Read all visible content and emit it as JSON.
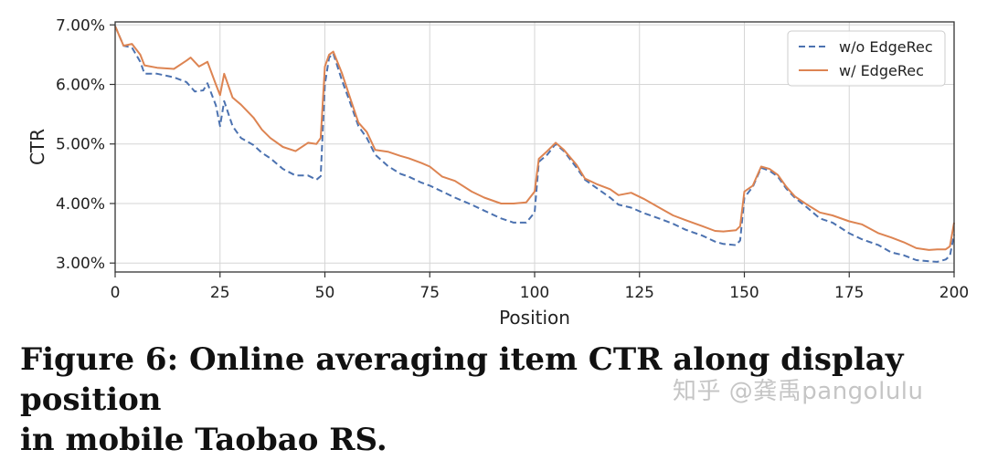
{
  "chart_data": {
    "type": "line",
    "title": "",
    "xlabel": "Position",
    "ylabel": "CTR",
    "xlim": [
      0,
      200
    ],
    "ylim": [
      0.0285,
      0.0705
    ],
    "x_ticks": [
      0,
      25,
      50,
      75,
      100,
      125,
      150,
      175,
      200
    ],
    "x_tick_labels": [
      "0",
      "25",
      "50",
      "75",
      "100",
      "125",
      "150",
      "175",
      "200"
    ],
    "y_ticks": [
      0.03,
      0.04,
      0.05,
      0.06,
      0.07
    ],
    "y_tick_labels": [
      "3.00%",
      "4.00%",
      "5.00%",
      "6.00%",
      "7.00%"
    ],
    "grid": true,
    "legend_position": "top-right",
    "series": [
      {
        "name": "w/o EdgeRec",
        "color": "#4c72b0",
        "style": "dashed",
        "points": [
          [
            0,
            0.0698
          ],
          [
            2,
            0.0665
          ],
          [
            4,
            0.0662
          ],
          [
            6,
            0.0638
          ],
          [
            7,
            0.0618
          ],
          [
            10,
            0.0618
          ],
          [
            14,
            0.0612
          ],
          [
            17,
            0.0604
          ],
          [
            19,
            0.0588
          ],
          [
            21,
            0.059
          ],
          [
            22,
            0.0602
          ],
          [
            24,
            0.0565
          ],
          [
            25,
            0.053
          ],
          [
            26,
            0.0572
          ],
          [
            28,
            0.053
          ],
          [
            30,
            0.051
          ],
          [
            33,
            0.0498
          ],
          [
            35,
            0.0485
          ],
          [
            37,
            0.0476
          ],
          [
            40,
            0.0458
          ],
          [
            43,
            0.0447
          ],
          [
            46,
            0.0447
          ],
          [
            48,
            0.044
          ],
          [
            49,
            0.0446
          ],
          [
            50,
            0.06
          ],
          [
            51,
            0.0645
          ],
          [
            52,
            0.0652
          ],
          [
            54,
            0.0608
          ],
          [
            56,
            0.057
          ],
          [
            58,
            0.053
          ],
          [
            60,
            0.051
          ],
          [
            62,
            0.0482
          ],
          [
            65,
            0.0463
          ],
          [
            68,
            0.045
          ],
          [
            70,
            0.0445
          ],
          [
            73,
            0.0435
          ],
          [
            75,
            0.043
          ],
          [
            78,
            0.042
          ],
          [
            81,
            0.041
          ],
          [
            85,
            0.0398
          ],
          [
            88,
            0.0388
          ],
          [
            92,
            0.0375
          ],
          [
            95,
            0.0368
          ],
          [
            98,
            0.0368
          ],
          [
            100,
            0.0385
          ],
          [
            101,
            0.047
          ],
          [
            103,
            0.0482
          ],
          [
            105,
            0.05
          ],
          [
            107,
            0.0488
          ],
          [
            110,
            0.046
          ],
          [
            112,
            0.044
          ],
          [
            115,
            0.0425
          ],
          [
            118,
            0.041
          ],
          [
            120,
            0.0398
          ],
          [
            123,
            0.0393
          ],
          [
            126,
            0.0384
          ],
          [
            130,
            0.0374
          ],
          [
            133,
            0.0366
          ],
          [
            136,
            0.0356
          ],
          [
            140,
            0.0346
          ],
          [
            143,
            0.0336
          ],
          [
            145,
            0.0332
          ],
          [
            148,
            0.033
          ],
          [
            149,
            0.0338
          ],
          [
            150,
            0.041
          ],
          [
            152,
            0.0428
          ],
          [
            154,
            0.046
          ],
          [
            156,
            0.0455
          ],
          [
            158,
            0.0445
          ],
          [
            160,
            0.0425
          ],
          [
            162,
            0.041
          ],
          [
            165,
            0.0393
          ],
          [
            168,
            0.0375
          ],
          [
            171,
            0.0368
          ],
          [
            175,
            0.035
          ],
          [
            178,
            0.034
          ],
          [
            182,
            0.033
          ],
          [
            185,
            0.0318
          ],
          [
            188,
            0.0313
          ],
          [
            191,
            0.0305
          ],
          [
            194,
            0.0303
          ],
          [
            196,
            0.0302
          ],
          [
            198,
            0.0306
          ],
          [
            199,
            0.0312
          ],
          [
            200,
            0.0348
          ]
        ]
      },
      {
        "name": "w/ EdgeRec",
        "color": "#dd8452",
        "style": "solid",
        "points": [
          [
            0,
            0.0698
          ],
          [
            2,
            0.0665
          ],
          [
            4,
            0.0668
          ],
          [
            6,
            0.065
          ],
          [
            7,
            0.0632
          ],
          [
            10,
            0.0628
          ],
          [
            14,
            0.0626
          ],
          [
            17,
            0.064
          ],
          [
            18,
            0.0645
          ],
          [
            20,
            0.063
          ],
          [
            22,
            0.0638
          ],
          [
            24,
            0.06
          ],
          [
            25,
            0.0582
          ],
          [
            26,
            0.0618
          ],
          [
            28,
            0.0578
          ],
          [
            30,
            0.0566
          ],
          [
            33,
            0.0544
          ],
          [
            35,
            0.0524
          ],
          [
            37,
            0.051
          ],
          [
            40,
            0.0495
          ],
          [
            43,
            0.0488
          ],
          [
            46,
            0.0502
          ],
          [
            48,
            0.05
          ],
          [
            49,
            0.051
          ],
          [
            50,
            0.063
          ],
          [
            51,
            0.065
          ],
          [
            52,
            0.0655
          ],
          [
            54,
            0.062
          ],
          [
            56,
            0.0578
          ],
          [
            58,
            0.0536
          ],
          [
            60,
            0.052
          ],
          [
            62,
            0.049
          ],
          [
            65,
            0.0487
          ],
          [
            68,
            0.048
          ],
          [
            70,
            0.0476
          ],
          [
            73,
            0.0468
          ],
          [
            75,
            0.0462
          ],
          [
            78,
            0.0445
          ],
          [
            81,
            0.0438
          ],
          [
            85,
            0.042
          ],
          [
            88,
            0.041
          ],
          [
            92,
            0.04
          ],
          [
            95,
            0.04
          ],
          [
            98,
            0.0402
          ],
          [
            100,
            0.042
          ],
          [
            101,
            0.0475
          ],
          [
            103,
            0.0488
          ],
          [
            105,
            0.0502
          ],
          [
            107,
            0.049
          ],
          [
            110,
            0.0465
          ],
          [
            112,
            0.0442
          ],
          [
            115,
            0.0432
          ],
          [
            118,
            0.0424
          ],
          [
            120,
            0.0414
          ],
          [
            123,
            0.0418
          ],
          [
            126,
            0.0408
          ],
          [
            130,
            0.0392
          ],
          [
            133,
            0.038
          ],
          [
            136,
            0.0372
          ],
          [
            140,
            0.0362
          ],
          [
            143,
            0.0354
          ],
          [
            145,
            0.0353
          ],
          [
            148,
            0.0355
          ],
          [
            149,
            0.0362
          ],
          [
            150,
            0.042
          ],
          [
            152,
            0.043
          ],
          [
            154,
            0.0462
          ],
          [
            156,
            0.0458
          ],
          [
            158,
            0.0448
          ],
          [
            160,
            0.0428
          ],
          [
            162,
            0.0412
          ],
          [
            165,
            0.0398
          ],
          [
            168,
            0.0385
          ],
          [
            171,
            0.038
          ],
          [
            175,
            0.037
          ],
          [
            178,
            0.0365
          ],
          [
            182,
            0.035
          ],
          [
            185,
            0.0343
          ],
          [
            188,
            0.0335
          ],
          [
            191,
            0.0325
          ],
          [
            194,
            0.0322
          ],
          [
            196,
            0.0323
          ],
          [
            198,
            0.0323
          ],
          [
            199,
            0.0328
          ],
          [
            200,
            0.0368
          ]
        ]
      }
    ]
  },
  "caption": {
    "line1": "Figure 6: Online averaging item CTR along display position",
    "line2": "in mobile Taobao RS."
  },
  "watermark": "知乎 @龚禹pangolulu"
}
